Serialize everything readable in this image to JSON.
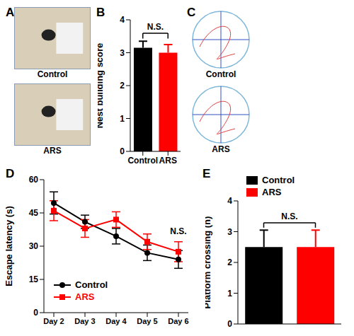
{
  "chart_data": [
    {
      "panel": "B",
      "type": "bar",
      "categories": [
        "Control",
        "ARS"
      ],
      "values": [
        3.15,
        3
      ],
      "errors": [
        0.2,
        0.25
      ],
      "colors": [
        "#000000",
        "#ff0000"
      ],
      "ylabel": "Nest building score",
      "ylim": [
        0,
        4
      ],
      "yticks": [
        0,
        1,
        2,
        3,
        4
      ],
      "annotation": "N.S."
    },
    {
      "panel": "D",
      "type": "line",
      "categories": [
        "Day 2",
        "Day 3",
        "Day 4",
        "Day 5",
        "Day 6"
      ],
      "ylabel": "Escape latency (s)",
      "ylim": [
        0,
        60
      ],
      "yticks": [
        0,
        15,
        30,
        45,
        60
      ],
      "legend": "lower left",
      "annotation": "N.S.",
      "series": [
        {
          "name": "Control",
          "color": "#000000",
          "marker": "circle",
          "values": [
            49.5,
            41,
            34.5,
            27,
            24
          ],
          "errors": [
            5,
            3,
            3.5,
            3.5,
            4
          ]
        },
        {
          "name": "ARS",
          "color": "#ff0000",
          "marker": "square",
          "values": [
            46,
            38,
            42,
            32,
            27.5
          ],
          "errors": [
            4.5,
            4,
            3.5,
            3.5,
            4.5
          ]
        }
      ]
    },
    {
      "panel": "E",
      "type": "bar",
      "categories": [
        "Control",
        "ARS"
      ],
      "values": [
        2.5,
        2.5
      ],
      "errors": [
        0.55,
        0.55
      ],
      "colors": [
        "#000000",
        "#ff0000"
      ],
      "ylabel": "Platform crossing (n)",
      "ylim": [
        0,
        4
      ],
      "yticks": [
        0,
        1,
        2,
        3,
        4
      ],
      "legend": "upper left",
      "tick_labels": "y",
      "annotation": "N.S."
    }
  ],
  "images": [
    {
      "panel": "A",
      "labels": [
        "Control",
        "ARS"
      ]
    },
    {
      "panel": "C",
      "labels": [
        "Control",
        "ARS"
      ]
    }
  ]
}
